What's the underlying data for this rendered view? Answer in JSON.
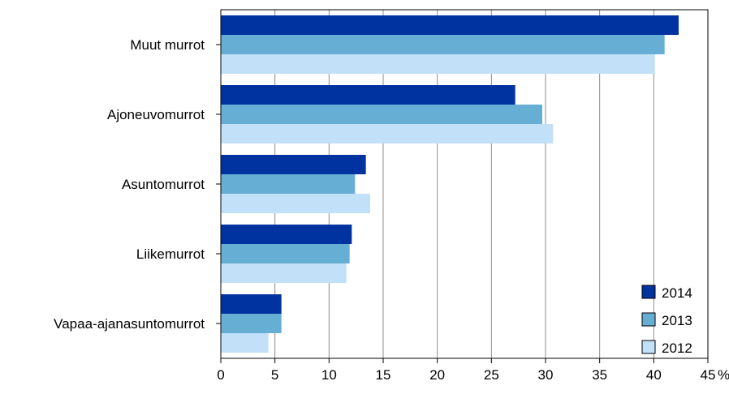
{
  "chart_data": {
    "type": "bar",
    "orientation": "horizontal",
    "categories": [
      "Muut murrot",
      "Ajoneuvomurrot",
      "Asuntomurrot",
      "Liikemurrot",
      "Vapaa-ajanasuntomurrot"
    ],
    "series": [
      {
        "name": "2014",
        "color": "#0033a0",
        "values": [
          42.3,
          27.2,
          13.4,
          12.1,
          5.6
        ]
      },
      {
        "name": "2013",
        "color": "#66aed4",
        "values": [
          41.0,
          29.7,
          12.4,
          11.9,
          5.6
        ]
      },
      {
        "name": "2012",
        "color": "#c2e0f7",
        "values": [
          40.1,
          30.7,
          13.8,
          11.6,
          4.4
        ]
      }
    ],
    "xlim": [
      0,
      45
    ],
    "xticks": [
      "0",
      "5",
      "10",
      "15",
      "20",
      "25",
      "30",
      "35",
      "40",
      "45"
    ],
    "unit": "%",
    "grid": "vertical",
    "legend_position": "bottom-right"
  }
}
